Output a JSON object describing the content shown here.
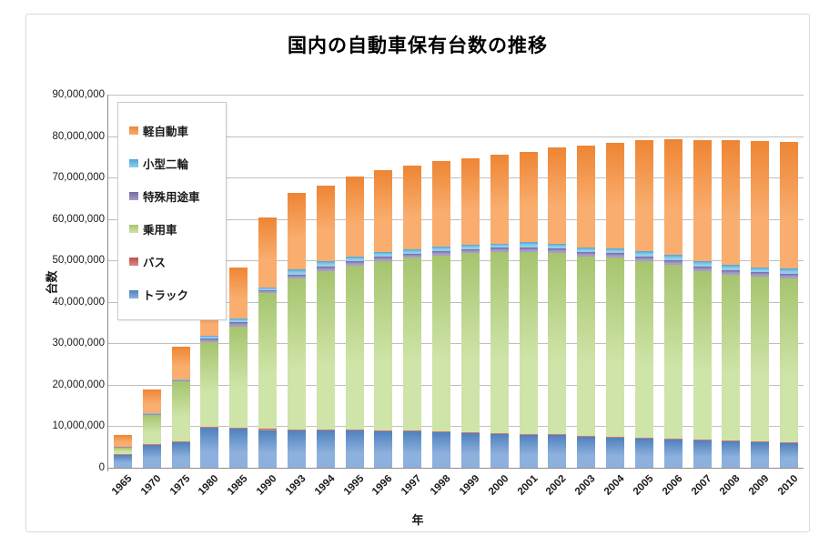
{
  "chart_title": "国内の自動車保有台数の推移",
  "chart_data": {
    "type": "bar",
    "subtype": "stacked-vertical",
    "title": "国内の自動車保有台数の推移",
    "xlabel": "年",
    "ylabel": "台数",
    "ylim": [
      0,
      90000000
    ],
    "ytick_step": 10000000,
    "ytick_labels": [
      "0",
      "10,000,000",
      "20,000,000",
      "30,000,000",
      "40,000,000",
      "50,000,000",
      "60,000,000",
      "70,000,000",
      "80,000,000",
      "90,000,000"
    ],
    "grid": true,
    "legend_position": "top-left-inside",
    "legend_order_top_to_bottom": [
      "軽自動車",
      "小型二輪",
      "特殊用途車",
      "乗用車",
      "バス",
      "トラック"
    ],
    "categories": [
      "1965",
      "1970",
      "1975",
      "1980",
      "1985",
      "1990",
      "1993",
      "1994",
      "1995",
      "1996",
      "1997",
      "1998",
      "1999",
      "2000",
      "2001",
      "2002",
      "2003",
      "2004",
      "2005",
      "2006",
      "2007",
      "2008",
      "2009",
      "2010"
    ],
    "series": [
      {
        "name": "トラック",
        "color": "#4f81bd",
        "color_light": "#8db0dd",
        "values": [
          3100000,
          5600000,
          6100000,
          9700000,
          9400000,
          9100000,
          8900000,
          8900000,
          8900000,
          8800000,
          8700000,
          8600000,
          8400000,
          8200000,
          8000000,
          7800000,
          7400000,
          7200000,
          7000000,
          6800000,
          6600000,
          6400000,
          6100000,
          5900000
        ]
      },
      {
        "name": "バス",
        "color": "#c0504d",
        "color_light": "#d88a88",
        "values": [
          100000,
          200000,
          200000,
          230000,
          230000,
          250000,
          240000,
          240000,
          240000,
          240000,
          240000,
          240000,
          240000,
          230000,
          230000,
          230000,
          230000,
          230000,
          230000,
          230000,
          230000,
          230000,
          230000,
          220000
        ]
      },
      {
        "name": "乗用車",
        "color": "#a6c46f",
        "color_light": "#cfe4a8",
        "values": [
          1700000,
          6900000,
          14500000,
          20400000,
          24500000,
          32700000,
          36500000,
          38200000,
          39600000,
          40800000,
          41700000,
          42400000,
          43100000,
          43600000,
          43900000,
          43700000,
          43300000,
          43200000,
          42500000,
          41900000,
          40500000,
          39900000,
          39700000,
          39600000
        ]
      },
      {
        "name": "特殊用途車",
        "color": "#7667a3",
        "color_light": "#a89cc8",
        "values": [
          100000,
          200000,
          300000,
          800000,
          950000,
          800000,
          900000,
          1100000,
          1000000,
          1000000,
          1000000,
          1000000,
          1000000,
          1000000,
          1000000,
          1100000,
          1100000,
          1150000,
          1200000,
          1050000,
          1100000,
          1200000,
          1150000,
          1100000
        ]
      },
      {
        "name": "小型二輪",
        "color": "#4aa8d8",
        "color_light": "#90cdea",
        "values": [
          100000,
          200000,
          300000,
          700000,
          950000,
          700000,
          1300000,
          1300000,
          1100000,
          1100000,
          1100000,
          1000000,
          1000000,
          1000000,
          1300000,
          1200000,
          1200000,
          1200000,
          1300000,
          1400000,
          1300000,
          1200000,
          1150000,
          1200000
        ]
      },
      {
        "name": "軽自動車",
        "color": "#ee8534",
        "color_light": "#f9ad6e",
        "values": [
          2900000,
          5700000,
          7800000,
          6900000,
          12200000,
          16900000,
          18500000,
          18400000,
          19400000,
          19900000,
          20200000,
          20700000,
          20900000,
          21400000,
          21700000,
          23200000,
          24400000,
          25300000,
          26700000,
          27800000,
          29400000,
          30000000,
          30400000,
          30600000
        ]
      }
    ]
  }
}
